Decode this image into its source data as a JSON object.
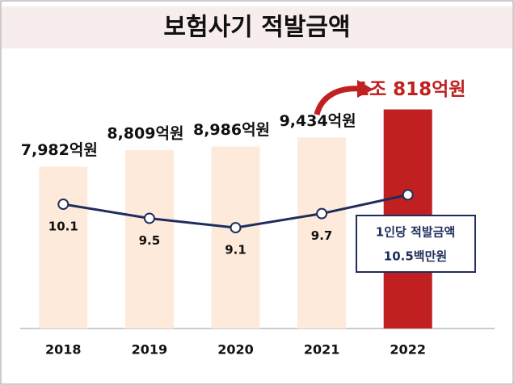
{
  "chart_data": {
    "type": "bar+line",
    "title": "보험사기 적발금액",
    "categories": [
      "2018",
      "2019",
      "2020",
      "2021",
      "2022"
    ],
    "ylim": [
      0,
      11000
    ],
    "y2lim": [
      4.8,
      14.3
    ],
    "series": [
      {
        "type": "bar",
        "colors": [
          "#fdeadb",
          "#fdeadb",
          "#fdeadb",
          "#fdeadb",
          "#c0201f"
        ],
        "values": [
          7982,
          8809,
          8986,
          9434,
          10818
        ],
        "value_labels": [
          "7,982억원",
          "8,809억원",
          "8,986억원",
          "9,434억원",
          "1조 818억원"
        ]
      },
      {
        "type": "line",
        "axis": "y2",
        "name": "1인당 적발금액",
        "color": "#1f2d5c",
        "values": [
          10.1,
          9.5,
          9.1,
          9.7,
          10.5
        ],
        "value_labels": [
          "10.1",
          "9.5",
          "9.1",
          "9.7",
          "10.5백만원"
        ]
      }
    ]
  }
}
